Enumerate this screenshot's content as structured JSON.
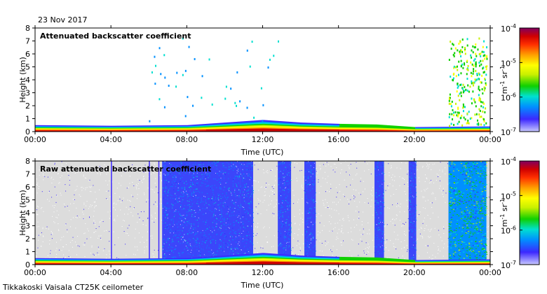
{
  "date_label": "23 Nov 2017",
  "footer": "Tikkakoski Vaisala CT25K ceilometer",
  "colors": {
    "scale": [
      "#c8c8ff",
      "#3c28ff",
      "#0090ff",
      "#00e0d0",
      "#10d000",
      "#c8f000",
      "#ffff00",
      "#ffa000",
      "#ff3000",
      "#d00000",
      "#800060"
    ],
    "noise_gray": "#dcdcdc"
  },
  "chart_data": [
    {
      "type": "heatmap",
      "title": "Attenuated backscatter coefficient",
      "xlabel": "Time (UTC)",
      "ylabel": "Height (km)",
      "xticks": [
        "00:00",
        "04:00",
        "08:00",
        "12:00",
        "16:00",
        "20:00",
        "00:00"
      ],
      "x_range_hours": [
        0,
        24
      ],
      "yticks": [
        "0",
        "1",
        "2",
        "3",
        "4",
        "5",
        "6",
        "7",
        "8"
      ],
      "ylim": [
        0,
        8
      ],
      "colorbar": {
        "min": "10^-7",
        "max": "10^-4",
        "ticks": [
          {
            "base": "10",
            "exp": "-4"
          },
          {
            "base": "10",
            "exp": "-5"
          },
          {
            "base": "10",
            "exp": "-6"
          },
          {
            "base": "10",
            "exp": "-7"
          }
        ],
        "unit_main": "m",
        "unit_exp1": "-1",
        "unit_mid": " sr",
        "unit_exp2": "-1",
        "scale": "log"
      },
      "features": {
        "boundary_layer_top_km_by_hour": [
          [
            0,
            0.5
          ],
          [
            4,
            0.45
          ],
          [
            8,
            0.5
          ],
          [
            10,
            0.7
          ],
          [
            12,
            0.9
          ],
          [
            14,
            0.7
          ],
          [
            16,
            0.6
          ],
          [
            18,
            0.55
          ],
          [
            20,
            0.35
          ],
          [
            24,
            0.4
          ]
        ],
        "upper_cloud": {
          "start_h": 21.8,
          "end_h": 23.8,
          "base_km": 0.5,
          "top_km": 7.3
        }
      }
    },
    {
      "type": "heatmap",
      "title": "Raw attenuated backscatter coefficient",
      "xlabel": "Time (UTC)",
      "ylabel": "Height (km)",
      "xticks": [
        "00:00",
        "04:00",
        "08:00",
        "12:00",
        "16:00",
        "20:00",
        "00:00"
      ],
      "x_range_hours": [
        0,
        24
      ],
      "yticks": [
        "0",
        "1",
        "2",
        "3",
        "4",
        "5",
        "6",
        "7",
        "8"
      ],
      "ylim": [
        0,
        8
      ],
      "colorbar": {
        "min": "10^-7",
        "max": "10^-4",
        "ticks": [
          {
            "base": "10",
            "exp": "-4"
          },
          {
            "base": "10",
            "exp": "-5"
          },
          {
            "base": "10",
            "exp": "-6"
          },
          {
            "base": "10",
            "exp": "-7"
          }
        ],
        "unit_main": "m",
        "unit_exp1": "-1",
        "unit_mid": " sr",
        "unit_exp2": "-1",
        "scale": "log"
      },
      "features": {
        "noise_bands_h": [
          [
            6.7,
            10.8
          ],
          [
            10.8,
            11.5
          ],
          [
            12.8,
            13.5
          ],
          [
            14.2,
            14.8
          ],
          [
            17.9,
            18.4
          ],
          [
            19.7,
            20.1
          ]
        ],
        "green_region": {
          "start_h": 21.8,
          "end_h": 23.8
        }
      }
    }
  ]
}
